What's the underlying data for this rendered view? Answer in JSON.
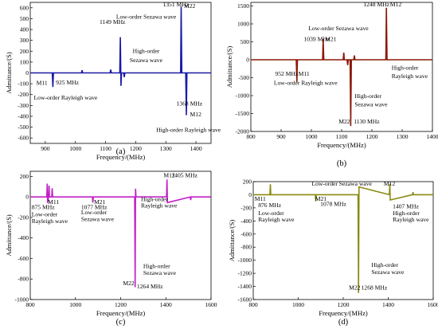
{
  "chart_data": [
    {
      "type": "line",
      "panel": "(a)",
      "color": "#1a1aa8",
      "xlabel": "Frequency/(MHz)",
      "ylabel": "Admittance/(S)",
      "xlim": [
        850,
        1450
      ],
      "ylim": [
        -650,
        650
      ],
      "xticks": [
        900,
        1000,
        1100,
        1200,
        1300,
        1400
      ],
      "yticks": [
        600,
        500,
        400,
        300,
        200,
        100,
        0,
        -100,
        -200,
        -300,
        -400,
        -500,
        -600
      ],
      "x": [
        850,
        923,
        925,
        927,
        1020,
        1022,
        1024,
        1115,
        1117,
        1119,
        1147,
        1149,
        1151,
        1153,
        1160,
        1162,
        1164,
        1349,
        1351,
        1353,
        1366,
        1368,
        1370,
        1450
      ],
      "y": [
        0,
        0,
        -130,
        0,
        0,
        25,
        0,
        0,
        30,
        0,
        0,
        330,
        -120,
        0,
        0,
        -40,
        0,
        0,
        610,
        0,
        0,
        -390,
        0,
        0
      ],
      "annotations": [
        {
          "text": "1351 MHz",
          "x": 1290,
          "y": 615
        },
        {
          "text": "M22",
          "x": 1360,
          "y": 600
        },
        {
          "text": "Low-order Sezawa wave",
          "x": 1135,
          "y": 500
        },
        {
          "text": "1149 MHz",
          "x": 1080,
          "y": 450
        },
        {
          "text": "High-order",
          "x": 1190,
          "y": 185
        },
        {
          "text": "Sezawa wave",
          "x": 1180,
          "y": 100
        },
        {
          "text": "M11",
          "x": 870,
          "y": -110
        },
        {
          "text": "925 MHz",
          "x": 935,
          "y": -105
        },
        {
          "text": "Low-order Rayleigh wave",
          "x": 862,
          "y": -245
        },
        {
          "text": "1368 MHz",
          "x": 1335,
          "y": -300
        },
        {
          "text": "M12",
          "x": 1380,
          "y": -400
        },
        {
          "text": "High-order Rayleigh wave",
          "x": 1268,
          "y": -545
        }
      ]
    },
    {
      "type": "line",
      "panel": "(b)",
      "color": "#8b1a0a",
      "xlabel": "Frequency/(MHz)",
      "ylabel": "Admittance/(S)",
      "xlim": [
        800,
        1400
      ],
      "ylim": [
        -2000,
        1600
      ],
      "xticks": [
        800,
        900,
        1000,
        1100,
        1200,
        1300,
        1400
      ],
      "yticks": [
        1500,
        1000,
        500,
        0,
        -500,
        -1000,
        -1500,
        -2000
      ],
      "x": [
        800,
        950,
        952,
        954,
        1037,
        1039,
        1041,
        1105,
        1107,
        1109,
        1118,
        1120,
        1122,
        1128,
        1130,
        1132,
        1140,
        1142,
        1144,
        1246,
        1248,
        1250,
        1400
      ],
      "y": [
        0,
        0,
        -620,
        0,
        0,
        580,
        0,
        0,
        200,
        0,
        0,
        -150,
        0,
        0,
        -1850,
        0,
        0,
        120,
        0,
        0,
        1450,
        0,
        0
      ],
      "annotations": [
        {
          "text": "1248 MHz",
          "x": 1172,
          "y": 1490
        },
        {
          "text": "M12",
          "x": 1260,
          "y": 1490
        },
        {
          "text": "Low-order Sezawa wave",
          "x": 990,
          "y": 820
        },
        {
          "text": "1039 MHz",
          "x": 975,
          "y": 520
        },
        {
          "text": "M21",
          "x": 1045,
          "y": 520
        },
        {
          "text": "952 MHz",
          "x": 880,
          "y": -440
        },
        {
          "text": "M11",
          "x": 957,
          "y": -440
        },
        {
          "text": "Low-order Rayleigh wave",
          "x": 876,
          "y": -700
        },
        {
          "text": "High-order",
          "x": 1265,
          "y": -280
        },
        {
          "text": "Rayleigh  wave",
          "x": 1265,
          "y": -510
        },
        {
          "text": "High-order",
          "x": 1143,
          "y": -1070
        },
        {
          "text": "Sezawa wave",
          "x": 1143,
          "y": -1300
        },
        {
          "text": "M22",
          "x": 1090,
          "y": -1780
        },
        {
          "text": "1130 MHz",
          "x": 1140,
          "y": -1780
        }
      ]
    },
    {
      "type": "line",
      "panel": "(c)",
      "color": "#c020c8",
      "xlabel": "Frequency/(MHz)",
      "ylabel": "Admittance/(S)",
      "xlim": [
        800,
        1600
      ],
      "ylim": [
        -1000,
        250
      ],
      "xticks": [
        800,
        1000,
        1200,
        1400,
        1600
      ],
      "yticks": [
        200,
        0,
        -200,
        -400,
        -600,
        -800,
        -1000
      ],
      "x": [
        800,
        873,
        875,
        877,
        881,
        883,
        885,
        895,
        897,
        899,
        1075,
        1077,
        1079,
        1262,
        1264,
        1266,
        1268,
        1270,
        1403,
        1405,
        1407,
        1508,
        1510,
        1512,
        1600
      ],
      "y": [
        0,
        0,
        130,
        -60,
        0,
        110,
        0,
        0,
        85,
        0,
        0,
        -55,
        0,
        0,
        -880,
        80,
        0,
        0,
        0,
        170,
        -55,
        0,
        -30,
        0,
        0
      ],
      "annotations": [
        {
          "text": "M12",
          "x": 1390,
          "y": 190
        },
        {
          "text": "1405 MHz",
          "x": 1425,
          "y": 190
        },
        {
          "text": "M11",
          "x": 878,
          "y": -70
        },
        {
          "text": "M21",
          "x": 1082,
          "y": -70
        },
        {
          "text": "875 MHz",
          "x": 806,
          "y": -120
        },
        {
          "text": "1077 MHz",
          "x": 1025,
          "y": -120
        },
        {
          "text": "Low-order",
          "x": 806,
          "y": -190
        },
        {
          "text": "Low-order",
          "x": 1025,
          "y": -170
        },
        {
          "text": "Rayleigh wave",
          "x": 806,
          "y": -255
        },
        {
          "text": "Sezawa wave",
          "x": 1025,
          "y": -235
        },
        {
          "text": "High-order",
          "x": 1290,
          "y": -40
        },
        {
          "text": "Rayleigh  wave",
          "x": 1290,
          "y": -105
        },
        {
          "text": "High-order",
          "x": 1300,
          "y": -695
        },
        {
          "text": "Sezawa wave",
          "x": 1300,
          "y": -760
        },
        {
          "text": "M22",
          "x": 1210,
          "y": -860
        },
        {
          "text": "1264 MHz",
          "x": 1272,
          "y": -890
        }
      ]
    },
    {
      "type": "line",
      "panel": "(d)",
      "color": "#8a8a12",
      "xlabel": "Frequency/(MHz)",
      "ylabel": "Admittance/(S)",
      "xlim": [
        800,
        1600
      ],
      "ylim": [
        -1600,
        200
      ],
      "xticks": [
        800,
        1000,
        1200,
        1400,
        1600
      ],
      "yticks": [
        200,
        0,
        -200,
        -400,
        -600,
        -800,
        -1000,
        -1200,
        -1400,
        -1600
      ],
      "x": [
        800,
        874,
        876,
        878,
        1076,
        1078,
        1080,
        1266,
        1268,
        1270,
        1405,
        1407,
        1409,
        1508,
        1510,
        1512,
        1600
      ],
      "y": [
        0,
        0,
        160,
        0,
        0,
        -100,
        0,
        0,
        -1500,
        120,
        0,
        170,
        -80,
        0,
        40,
        0,
        0
      ],
      "annotations": [
        {
          "text": "Low-order Sezawa wave",
          "x": 1060,
          "y": 140
        },
        {
          "text": "M12",
          "x": 1380,
          "y": 140
        },
        {
          "text": "M11",
          "x": 806,
          "y": -90
        },
        {
          "text": "M21",
          "x": 1075,
          "y": -90
        },
        {
          "text": "876 MHz",
          "x": 822,
          "y": -190
        },
        {
          "text": "1078 MHz",
          "x": 1098,
          "y": -170
        },
        {
          "text": "1407 MHz",
          "x": 1420,
          "y": -210
        },
        {
          "text": "Low-order",
          "x": 822,
          "y": -310
        },
        {
          "text": "High-order",
          "x": 1420,
          "y": -310
        },
        {
          "text": "Rayleigh wave",
          "x": 822,
          "y": -410
        },
        {
          "text": "Rayleigh  wave",
          "x": 1420,
          "y": -410
        },
        {
          "text": "High-order",
          "x": 1325,
          "y": -1100
        },
        {
          "text": "Sezawa wave",
          "x": 1325,
          "y": -1210
        },
        {
          "text": "M22",
          "x": 1225,
          "y": -1450
        },
        {
          "text": "1268 MHz",
          "x": 1280,
          "y": -1450
        }
      ]
    }
  ]
}
